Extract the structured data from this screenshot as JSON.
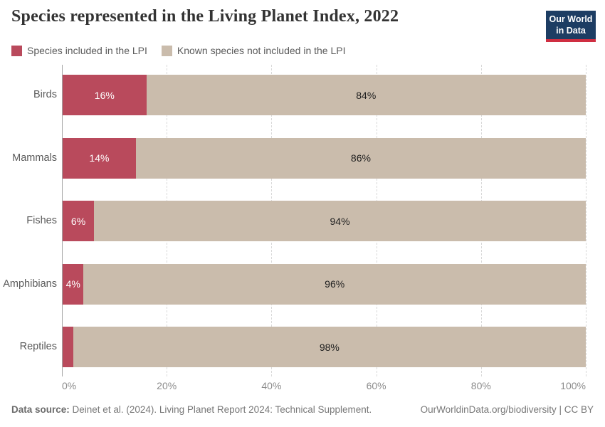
{
  "header": {
    "title": "Species represented in the Living Planet Index, 2022"
  },
  "logo": {
    "line1": "Our World",
    "line2": "in Data",
    "bg_color": "#1d3d63",
    "accent_color": "#cf2e41"
  },
  "chart_data": {
    "type": "bar",
    "stacked": true,
    "orientation": "horizontal",
    "title": "Species represented in the Living Planet Index, 2022",
    "categories": [
      "Birds",
      "Mammals",
      "Fishes",
      "Amphibians",
      "Reptiles"
    ],
    "series": [
      {
        "name": "Species included in the LPI",
        "color": "#b94a5c",
        "label_color": "#ffffff",
        "values": [
          16,
          14,
          6,
          4,
          2
        ],
        "labels": [
          "16%",
          "14%",
          "6%",
          "4%",
          ""
        ]
      },
      {
        "name": "Known species not included in the LPI",
        "color": "#cabcac",
        "label_color": "#1f1f1f",
        "values": [
          84,
          86,
          94,
          96,
          98
        ],
        "labels": [
          "84%",
          "86%",
          "94%",
          "96%",
          "98%"
        ]
      }
    ],
    "xlabel": "",
    "ylabel": "",
    "xlim": [
      0,
      100
    ],
    "x_ticks": [
      "0%",
      "20%",
      "40%",
      "60%",
      "80%",
      "100%"
    ],
    "grid": "vertical-dashed",
    "legend_position": "top-left"
  },
  "footer": {
    "source_label": "Data source:",
    "source_text": " Deinet et al. (2024). Living Planet Report 2024: Technical Supplement.",
    "credit_text": "OurWorldinData.org/biodiversity | CC BY"
  }
}
